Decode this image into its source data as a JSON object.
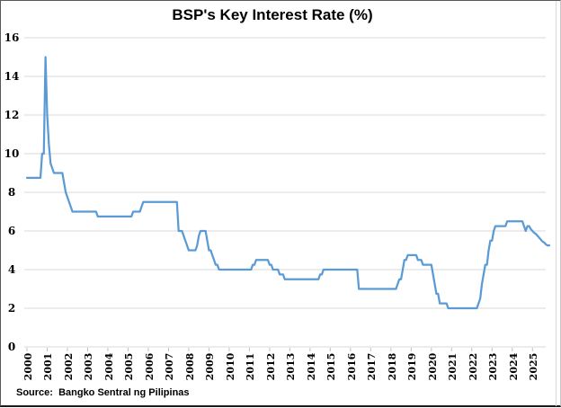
{
  "title": "BSP's Key Interest Rate (%)",
  "source_note": "Source:  Bangko Sentral ng Pilipinas",
  "colors": {
    "line": "#5B9BD5",
    "gridline": "#D9D9D9",
    "tick_mark": "#BFBFBF",
    "text": "#000000",
    "frame": "#595959"
  },
  "chart_data": {
    "type": "line",
    "title": "BSP's Key Interest Rate (%)",
    "xlabel": "",
    "ylabel": "",
    "ylim": [
      0,
      16
    ],
    "y_ticks": [
      16,
      14,
      12,
      10,
      8,
      6,
      4,
      2,
      0
    ],
    "x_tick_labels": [
      "2000",
      "2001",
      "2002",
      "2003",
      "2004",
      "2005",
      "2006",
      "2007",
      "2008",
      "2009",
      "2010",
      "2011",
      "2012",
      "2013",
      "2014",
      "2015",
      "2016",
      "2017",
      "2018",
      "2019",
      "2020",
      "2021",
      "2022",
      "2023",
      "2024",
      "2025"
    ],
    "grid": true,
    "legend": "none",
    "series_name": "BSP key policy interest rate (%)",
    "frequency": "monthly",
    "start": "2000-01",
    "end": "2025-11",
    "values": [
      8.75,
      8.75,
      8.75,
      8.75,
      8.75,
      8.75,
      8.75,
      8.75,
      8.75,
      10,
      10,
      15,
      12,
      10.5,
      9.5,
      9.25,
      9,
      9,
      9,
      9,
      9,
      9,
      8.5,
      8,
      7.75,
      7.5,
      7.25,
      7,
      7,
      7,
      7,
      7,
      7,
      7,
      7,
      7,
      7,
      7,
      7,
      7,
      7,
      7,
      6.75,
      6.75,
      6.75,
      6.75,
      6.75,
      6.75,
      6.75,
      6.75,
      6.75,
      6.75,
      6.75,
      6.75,
      6.75,
      6.75,
      6.75,
      6.75,
      6.75,
      6.75,
      6.75,
      6.75,
      6.75,
      7,
      7,
      7,
      7,
      7,
      7.25,
      7.5,
      7.5,
      7.5,
      7.5,
      7.5,
      7.5,
      7.5,
      7.5,
      7.5,
      7.5,
      7.5,
      7.5,
      7.5,
      7.5,
      7.5,
      7.5,
      7.5,
      7.5,
      7.5,
      7.5,
      7.5,
      6,
      6,
      6,
      5.75,
      5.5,
      5.25,
      5,
      5,
      5,
      5,
      5,
      5.25,
      5.75,
      6,
      6,
      6,
      6,
      5.5,
      5,
      5,
      4.75,
      4.5,
      4.25,
      4.25,
      4,
      4,
      4,
      4,
      4,
      4,
      4,
      4,
      4,
      4,
      4,
      4,
      4,
      4,
      4,
      4,
      4,
      4,
      4,
      4,
      4.25,
      4.25,
      4.5,
      4.5,
      4.5,
      4.5,
      4.5,
      4.5,
      4.5,
      4.5,
      4.25,
      4.25,
      4,
      4,
      4,
      4,
      3.75,
      3.75,
      3.75,
      3.5,
      3.5,
      3.5,
      3.5,
      3.5,
      3.5,
      3.5,
      3.5,
      3.5,
      3.5,
      3.5,
      3.5,
      3.5,
      3.5,
      3.5,
      3.5,
      3.5,
      3.5,
      3.5,
      3.5,
      3.5,
      3.75,
      3.75,
      4,
      4,
      4,
      4,
      4,
      4,
      4,
      4,
      4,
      4,
      4,
      4,
      4,
      4,
      4,
      4,
      4,
      4,
      4,
      4,
      4,
      3,
      3,
      3,
      3,
      3,
      3,
      3,
      3,
      3,
      3,
      3,
      3,
      3,
      3,
      3,
      3,
      3,
      3,
      3,
      3,
      3,
      3,
      3,
      3.25,
      3.5,
      3.5,
      4,
      4.5,
      4.5,
      4.75,
      4.75,
      4.75,
      4.75,
      4.75,
      4.75,
      4.5,
      4.5,
      4.5,
      4.25,
      4.25,
      4.25,
      4.25,
      4.25,
      4.25,
      3.75,
      3.25,
      2.75,
      2.75,
      2.25,
      2.25,
      2.25,
      2.25,
      2.25,
      2,
      2,
      2,
      2,
      2,
      2,
      2,
      2,
      2,
      2,
      2,
      2,
      2,
      2,
      2,
      2,
      2,
      2,
      2.25,
      2.5,
      3.25,
      3.75,
      4.25,
      4.25,
      5,
      5.5,
      5.5,
      6,
      6.25,
      6.25,
      6.25,
      6.25,
      6.25,
      6.25,
      6.25,
      6.5,
      6.5,
      6.5,
      6.5,
      6.5,
      6.5,
      6.5,
      6.5,
      6.5,
      6.5,
      6.25,
      6,
      6.25,
      6.25,
      6.1,
      6,
      5.9,
      5.85,
      5.75,
      5.65,
      5.55,
      5.45,
      5.4,
      5.3,
      5.25,
      5.25
    ]
  }
}
